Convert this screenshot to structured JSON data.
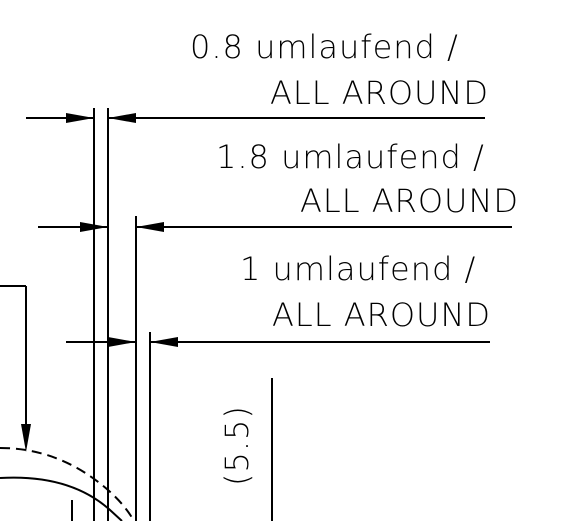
{
  "annotations": [
    {
      "line1": "0.8 umlaufend /",
      "line2": "ALL AROUND"
    },
    {
      "line1": "1.8 umlaufend /",
      "line2": "ALL AROUND"
    },
    {
      "line1": "1 umlaufend /",
      "line2": "ALL AROUND"
    }
  ],
  "vertical_dimension": "(5.5)",
  "colors": {
    "ink": "#000000",
    "background": "#ffffff"
  }
}
